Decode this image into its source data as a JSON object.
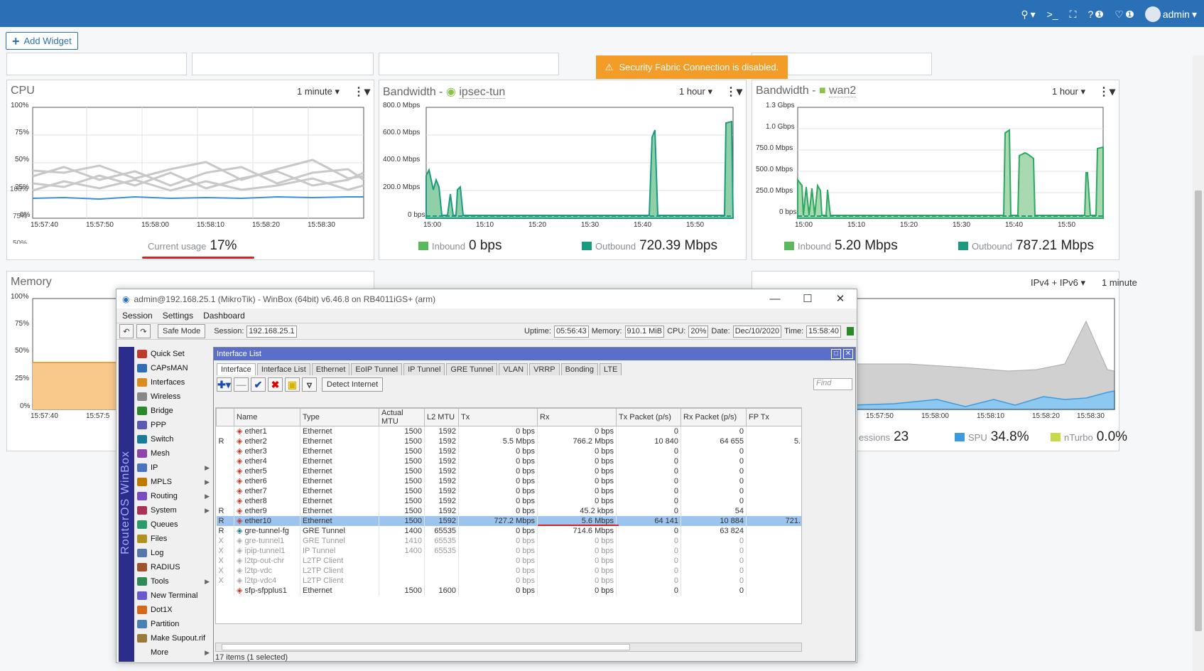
{
  "topbar": {
    "user": "admin",
    "help_count": "1",
    "notif_count": "1"
  },
  "add_widget_label": "Add Widget",
  "warning": "Security Fabric Connection is disabled.",
  "cpu": {
    "title": "CPU",
    "interval": "1 minute",
    "y_ticks": [
      "100%",
      "75%",
      "50%",
      "25%",
      "0%"
    ],
    "x_ticks": [
      "15:57:40",
      "15:57:50",
      "15:58:00",
      "15:58:10",
      "15:58:20",
      "15:58:30"
    ],
    "usage_label": "Current usage",
    "usage_value": "17%"
  },
  "bw1": {
    "title": "Bandwidth -",
    "iface": "ipsec-tun",
    "interval": "1 hour",
    "y_ticks": [
      "800.0 Mbps",
      "600.0 Mbps",
      "400.0 Mbps",
      "200.0 Mbps",
      "0 bps"
    ],
    "x_ticks": [
      "15:00",
      "15:10",
      "15:20",
      "15:30",
      "15:40",
      "15:50"
    ],
    "in_label": "Inbound",
    "in_value": "0 bps",
    "out_label": "Outbound",
    "out_value": "720.39 Mbps"
  },
  "bw2": {
    "title": "Bandwidth -",
    "iface": "wan2",
    "interval": "1 hour",
    "y_ticks": [
      "1.3 Gbps",
      "1.0 Gbps",
      "750.0 Mbps",
      "500.0 Mbps",
      "250.0 Mbps",
      "0 bps"
    ],
    "x_ticks": [
      "15:00",
      "15:10",
      "15:20",
      "15:30",
      "15:40",
      "15:50"
    ],
    "in_label": "Inbound",
    "in_value": "5.20 Mbps",
    "out_label": "Outbound",
    "out_value": "787.21 Mbps"
  },
  "mem": {
    "title": "Memory",
    "y_ticks": [
      "100%",
      "75%",
      "50%",
      "25%",
      "0%"
    ],
    "x_ticks": [
      "15:57:40",
      "15:57:5"
    ]
  },
  "sess": {
    "filter": "IPv4 + IPv6",
    "interval": "1 minute",
    "x_ticks": [
      "15:57:50",
      "15:58:00",
      "15:58:10",
      "15:58:20",
      "15:58:30"
    ],
    "sessions_label": "essions",
    "sessions_value": "23",
    "spu_label": "SPU",
    "spu_value": "34.8%",
    "nturbo_label": "nTurbo",
    "nturbo_value": "0.0%"
  },
  "colors": {
    "accent": "#2a70b7",
    "warn": "#f39c27",
    "inbound": "#5cb85c",
    "outbound": "#1a9a80",
    "cpu_line": "#3c8dde",
    "mem_fill": "#f9c98c",
    "spu": "#3c9be0",
    "nturbo": "#c8d94a",
    "underline": "#e02020"
  },
  "winbox": {
    "title": "admin@192.168.25.1 (MikroTik) - WinBox (64bit) v6.46.8 on RB4011iGS+ (arm)",
    "menu": [
      "Session",
      "Settings",
      "Dashboard"
    ],
    "safe_mode": "Safe Mode",
    "session_label": "Session:",
    "session_value": "192.168.25.1",
    "uptime_label": "Uptime:",
    "uptime": "05:56:43",
    "memory_label": "Memory:",
    "memory": "910.1 MiB",
    "cpu_label": "CPU:",
    "cpu": "20%",
    "date_label": "Date:",
    "date": "Dec/10/2020",
    "time_label": "Time:",
    "time": "15:58:40",
    "side_banner": "RouterOS WinBox",
    "side": [
      {
        "label": "Quick Set",
        "icon": "quickset-icon"
      },
      {
        "label": "CAPsMAN",
        "icon": "capsman-icon"
      },
      {
        "label": "Interfaces",
        "icon": "interfaces-icon"
      },
      {
        "label": "Wireless",
        "icon": "wireless-icon"
      },
      {
        "label": "Bridge",
        "icon": "bridge-icon"
      },
      {
        "label": "PPP",
        "icon": "ppp-icon"
      },
      {
        "label": "Switch",
        "icon": "switch-icon"
      },
      {
        "label": "Mesh",
        "icon": "mesh-icon"
      },
      {
        "label": "IP",
        "icon": "ip-icon"
      },
      {
        "label": "MPLS",
        "icon": "mpls-icon"
      },
      {
        "label": "Routing",
        "icon": "routing-icon"
      },
      {
        "label": "System",
        "icon": "system-icon"
      },
      {
        "label": "Queues",
        "icon": "queues-icon"
      },
      {
        "label": "Files",
        "icon": "files-icon"
      },
      {
        "label": "Log",
        "icon": "log-icon"
      },
      {
        "label": "RADIUS",
        "icon": "radius-icon"
      },
      {
        "label": "Tools",
        "icon": "tools-icon"
      },
      {
        "label": "New Terminal",
        "icon": "terminal-icon"
      },
      {
        "label": "Dot1X",
        "icon": "dot1x-icon"
      },
      {
        "label": "Partition",
        "icon": "partition-icon"
      },
      {
        "label": "Make Supout.rif",
        "icon": "supout-icon"
      },
      {
        "label": "More",
        "icon": ""
      }
    ],
    "ilist_title": "Interface List",
    "tabs": [
      "Interface",
      "Interface List",
      "Ethernet",
      "EoIP Tunnel",
      "IP Tunnel",
      "GRE Tunnel",
      "VLAN",
      "VRRP",
      "Bonding",
      "LTE"
    ],
    "detect": "Detect Internet",
    "find": "Find",
    "columns": [
      "",
      "Name",
      "Type",
      "Actual MTU",
      "L2 MTU",
      "Tx",
      "Rx",
      "Tx Packet (p/s)",
      "Rx Packet (p/s)",
      "FP Tx"
    ],
    "rows": [
      [
        "",
        "ether1",
        "Ethernet",
        "1500",
        "1592",
        "0 bps",
        "0 bps",
        "0",
        "0",
        ""
      ],
      [
        "R",
        "ether2",
        "Ethernet",
        "1500",
        "1592",
        "5.5 Mbps",
        "766.2 Mbps",
        "10 840",
        "64 655",
        "5."
      ],
      [
        "",
        "ether3",
        "Ethernet",
        "1500",
        "1592",
        "0 bps",
        "0 bps",
        "0",
        "0",
        ""
      ],
      [
        "",
        "ether4",
        "Ethernet",
        "1500",
        "1592",
        "0 bps",
        "0 bps",
        "0",
        "0",
        ""
      ],
      [
        "",
        "ether5",
        "Ethernet",
        "1500",
        "1592",
        "0 bps",
        "0 bps",
        "0",
        "0",
        ""
      ],
      [
        "",
        "ether6",
        "Ethernet",
        "1500",
        "1592",
        "0 bps",
        "0 bps",
        "0",
        "0",
        ""
      ],
      [
        "",
        "ether7",
        "Ethernet",
        "1500",
        "1592",
        "0 bps",
        "0 bps",
        "0",
        "0",
        ""
      ],
      [
        "",
        "ether8",
        "Ethernet",
        "1500",
        "1592",
        "0 bps",
        "0 bps",
        "0",
        "0",
        ""
      ],
      [
        "R",
        "ether9",
        "Ethernet",
        "1500",
        "1592",
        "0 bps",
        "45.2 kbps",
        "0",
        "54",
        ""
      ],
      [
        "R",
        "ether10",
        "Ethernet",
        "1500",
        "1592",
        "727.2 Mbps",
        "5.6 Mbps",
        "64 141",
        "10 884",
        "721."
      ],
      [
        "R",
        "gre-tunnel-fg",
        "GRE Tunnel",
        "1400",
        "65535",
        "0 bps",
        "714.6 Mbps",
        "0",
        "63 824",
        ""
      ],
      [
        "X",
        "gre-tunnel1",
        "GRE Tunnel",
        "1410",
        "65535",
        "0 bps",
        "0 bps",
        "0",
        "0",
        ""
      ],
      [
        "X",
        "ipip-tunnel1",
        "IP Tunnel",
        "1400",
        "65535",
        "0 bps",
        "0 bps",
        "0",
        "0",
        ""
      ],
      [
        "X",
        "l2tp-out-chr",
        "L2TP Client",
        "",
        "",
        "0 bps",
        "0 bps",
        "0",
        "0",
        ""
      ],
      [
        "X",
        "l2tp-vdc",
        "L2TP Client",
        "",
        "",
        "0 bps",
        "0 bps",
        "0",
        "0",
        ""
      ],
      [
        "X",
        "l2tp-vdc4",
        "L2TP Client",
        "",
        "",
        "0 bps",
        "0 bps",
        "0",
        "0",
        ""
      ],
      [
        "",
        "sfp-sfpplus1",
        "Ethernet",
        "1500",
        "1600",
        "0 bps",
        "0 bps",
        "0",
        "0",
        ""
      ]
    ],
    "status": "17 items (1 selected)"
  }
}
